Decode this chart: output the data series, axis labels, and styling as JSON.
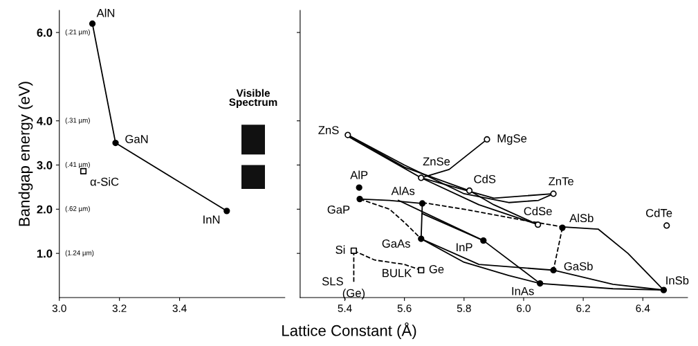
{
  "chart_data": [
    {
      "type": "line",
      "ylabel": "Bandgap energy (eV)",
      "xlim": [
        3.0,
        3.75
      ],
      "ylim": [
        0,
        6.5
      ],
      "xticks": [
        {
          "value": 3.0,
          "label": "3.0"
        },
        3.2,
        3.4
      ],
      "yticks": [
        {
          "value": 1.0,
          "label": "1.0"
        },
        {
          "value": 2.0,
          "label": "2.0"
        },
        {
          "value": 3.0,
          "label": "3.0"
        },
        {
          "value": 4.0,
          "label": "4.0"
        },
        {
          "value": 6.0,
          "label": "6.0"
        }
      ],
      "grid": false,
      "legend": false,
      "series": [
        {
          "color": "#000000",
          "line_style": "solid",
          "x": [
            3.11,
            3.187,
            3.557
          ],
          "values": [
            6.2,
            3.5,
            1.96
          ]
        },
        {
          "type": "scatter",
          "color": "#000000",
          "marker": "circle",
          "x": [
            3.11,
            3.187,
            3.557
          ],
          "values": [
            6.2,
            3.5,
            1.96
          ]
        },
        {
          "type": "scatter",
          "color": "#ffffff",
          "marker": "square",
          "x": [
            3.08
          ],
          "values": [
            2.86
          ]
        }
      ],
      "annotations": [
        {
          "text": "AlN",
          "x": 3.11,
          "y": 6.2
        },
        {
          "text": "GaN",
          "x": 3.187,
          "y": 3.5
        },
        {
          "text": "InN",
          "x": 3.557,
          "y": 1.96
        },
        {
          "text": "α-SiC",
          "x": 3.08,
          "y": 2.86
        },
        "(1.24 µm)",
        "(.62 µm)",
        "(.41 µm)",
        "(.31 µm)",
        "(.21 µm)",
        "Visible\nSpectrum"
      ]
    },
    {
      "type": "line",
      "xlabel": "Lattice Constant (Å)",
      "xlim": [
        5.25,
        6.55
      ],
      "ylim": [
        0,
        6.5
      ],
      "yticks": [
        {
          "value": 1.0,
          "label": null
        },
        {
          "value": 2.0,
          "label": null
        },
        {
          "value": 3.0,
          "label": null
        },
        {
          "value": 4.0,
          "label": null
        },
        {
          "value": 6.0,
          "label": null
        }
      ],
      "xticks": [
        5.4,
        5.6,
        5.8,
        {
          "value": 6.0,
          "label": "6.0"
        },
        6.2,
        6.4
      ],
      "tick_labels": "x",
      "grid": false,
      "legend": false,
      "series": [
        {
          "color": "#000000",
          "line_style": "solid",
          "x": [
            5.41,
            5.6,
            5.8,
            5.95,
            6.05,
            6.1
          ],
          "values": [
            3.68,
            3.0,
            2.35,
            2.15,
            2.2,
            2.35
          ]
        },
        {
          "color": "#000000",
          "line_style": "solid",
          "x": [
            5.41,
            5.6,
            5.818
          ],
          "values": [
            3.68,
            2.95,
            2.42
          ]
        },
        {
          "color": "#000000",
          "line_style": "solid",
          "x": [
            5.41,
            5.656,
            5.85,
            6.048
          ],
          "values": [
            3.65,
            2.71,
            2.1,
            1.65
          ]
        },
        {
          "color": "#000000",
          "line_style": "solid",
          "x": [
            5.656,
            5.75,
            5.877
          ],
          "values": [
            2.71,
            2.9,
            3.58
          ]
        },
        {
          "color": "#000000",
          "line_style": "solid",
          "x": [
            5.818,
            5.9,
            6.048
          ],
          "values": [
            2.42,
            2.1,
            1.65
          ]
        },
        {
          "color": "#000000",
          "line_style": "solid",
          "x": [
            5.656,
            5.9,
            6.1
          ],
          "values": [
            2.71,
            2.25,
            2.35
          ]
        },
        {
          "color": "#000000",
          "line_style": "solid",
          "x": [
            5.45,
            5.55,
            5.66
          ],
          "values": [
            2.23,
            2.2,
            2.13
          ]
        },
        {
          "color": "#000000",
          "line_style": "solid",
          "x": [
            5.66,
            5.656
          ],
          "values": [
            2.13,
            1.33
          ]
        },
        {
          "color": "#000000",
          "line_style": "dashed",
          "x": [
            5.45,
            5.55,
            5.6,
            5.656
          ],
          "values": [
            2.23,
            2.0,
            1.7,
            1.33
          ]
        },
        {
          "color": "#000000",
          "line_style": "solid",
          "x": [
            5.656,
            5.8,
            5.95,
            6.055
          ],
          "values": [
            1.33,
            0.8,
            0.5,
            0.32
          ]
        },
        {
          "color": "#000000",
          "line_style": "solid",
          "x": [
            5.66,
            5.865
          ],
          "values": [
            1.9,
            1.29
          ]
        },
        {
          "color": "#000000",
          "line_style": "solid",
          "x": [
            5.58,
            5.865,
            6.055
          ],
          "values": [
            2.2,
            1.29,
            0.32
          ]
        },
        {
          "color": "#000000",
          "line_style": "dashed",
          "x": [
            5.66,
            5.8,
            6.0,
            6.13
          ],
          "values": [
            2.15,
            2.0,
            1.75,
            1.6
          ]
        },
        {
          "color": "#000000",
          "line_style": "dashed",
          "x": [
            6.13,
            6.1
          ],
          "values": [
            1.58,
            0.62
          ]
        },
        {
          "color": "#000000",
          "line_style": "solid",
          "x": [
            6.13,
            6.25,
            6.35,
            6.47
          ],
          "values": [
            1.6,
            1.55,
            1.0,
            0.17
          ]
        },
        {
          "color": "#000000",
          "line_style": "solid",
          "x": [
            5.656,
            5.85,
            6.1
          ],
          "values": [
            1.33,
            0.75,
            0.62
          ]
        },
        {
          "color": "#000000",
          "line_style": "solid",
          "x": [
            6.1,
            6.3,
            6.47
          ],
          "values": [
            0.62,
            0.3,
            0.17
          ]
        },
        {
          "color": "#000000",
          "line_style": "solid",
          "x": [
            6.055,
            6.3,
            6.47
          ],
          "values": [
            0.32,
            0.2,
            0.17
          ]
        },
        {
          "color": "#000000",
          "line_style": "dashed",
          "x": [
            5.43,
            5.5,
            5.6,
            5.656
          ],
          "values": [
            1.06,
            0.85,
            0.75,
            0.62
          ]
        },
        {
          "color": "#000000",
          "line_style": "dashed",
          "x": [
            5.43,
            5.43
          ],
          "values": [
            1.06,
            0.34
          ]
        },
        {
          "type": "scatter",
          "color": "#000000",
          "marker": "circle",
          "x": [
            5.448,
            5.45,
            5.66,
            5.656,
            5.865,
            6.13,
            6.1,
            6.055,
            6.47
          ],
          "values": [
            2.49,
            2.23,
            2.13,
            1.33,
            1.29,
            1.58,
            0.62,
            0.32,
            0.17
          ]
        },
        {
          "type": "scatter",
          "color": "#ffffff",
          "marker": "circle",
          "x": [
            5.41,
            5.877,
            5.656,
            5.818,
            6.1,
            6.048,
            6.48
          ],
          "values": [
            3.68,
            3.58,
            2.71,
            2.42,
            2.35,
            1.65,
            1.63
          ]
        },
        {
          "type": "scatter",
          "color": "#ffffff",
          "marker": "square",
          "x": [
            5.43,
            5.656
          ],
          "values": [
            1.06,
            0.62
          ]
        }
      ],
      "annotations": [
        {
          "text": "ZnS",
          "x": 5.41,
          "y": 3.68
        },
        {
          "text": "MgSe",
          "x": 5.877,
          "y": 3.58
        },
        {
          "text": "ZnSe",
          "x": 5.656,
          "y": 2.71
        },
        {
          "text": "CdS",
          "x": 5.818,
          "y": 2.42
        },
        {
          "text": "ZnTe",
          "x": 6.1,
          "y": 2.35
        },
        {
          "text": "CdSe",
          "x": 6.048,
          "y": 1.65
        },
        {
          "text": "AlSb",
          "x": 6.13,
          "y": 1.58
        },
        {
          "text": "CdTe",
          "x": 6.48,
          "y": 1.63
        },
        {
          "text": "AlP",
          "x": 5.448,
          "y": 2.49
        },
        {
          "text": "GaP",
          "x": 5.45,
          "y": 2.23
        },
        {
          "text": "AlAs",
          "x": 5.66,
          "y": 2.13
        },
        {
          "text": "GaAs",
          "x": 5.656,
          "y": 1.33
        },
        {
          "text": "InP",
          "x": 5.865,
          "y": 1.29
        },
        {
          "text": "GaSb",
          "x": 6.1,
          "y": 0.62
        },
        {
          "text": "InAs",
          "x": 6.055,
          "y": 0.32
        },
        {
          "text": "InSb",
          "x": 6.47,
          "y": 0.17
        },
        {
          "text": "Si",
          "x": 5.43,
          "y": 1.06
        },
        {
          "text": "Ge",
          "x": 5.656,
          "y": 0.62
        },
        {
          "text": "SLS",
          "x": 5.43,
          "y": 0.65
        },
        {
          "text": "BULK",
          "x": 5.6,
          "y": 0.75
        },
        {
          "text": "(Ge)",
          "x": 5.43,
          "y": 0.34
        }
      ]
    }
  ]
}
